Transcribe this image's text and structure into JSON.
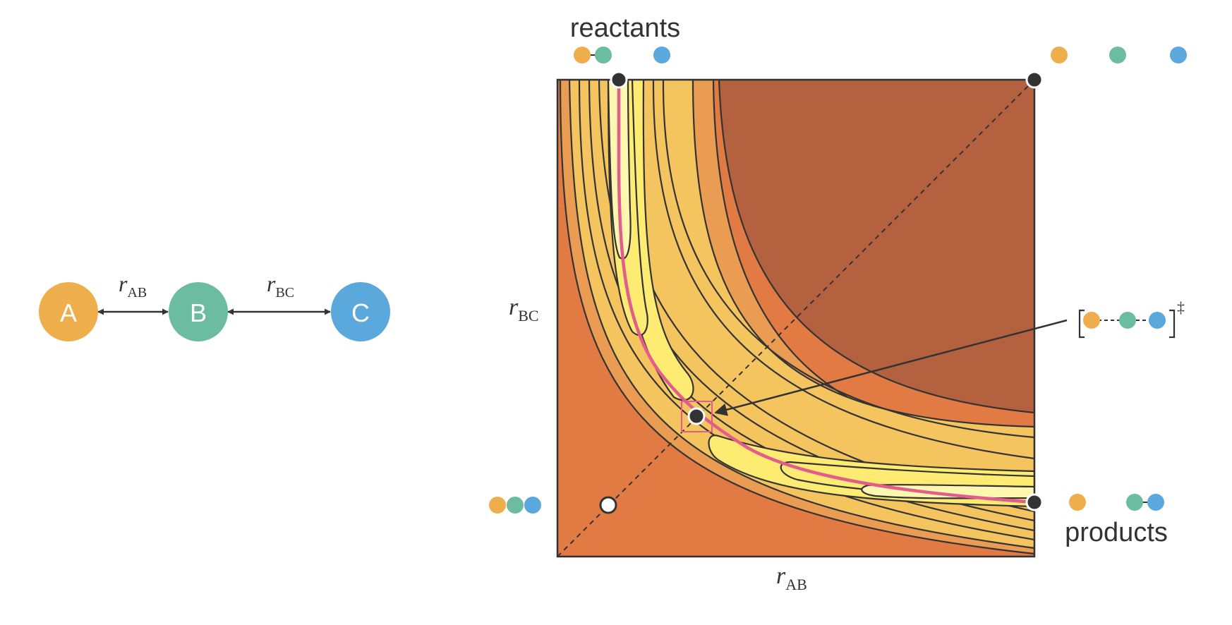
{
  "molecule": {
    "atoms": [
      {
        "label": "A",
        "color": "#EFAE4C"
      },
      {
        "label": "B",
        "color": "#6BBCA0"
      },
      {
        "label": "C",
        "color": "#5AA8DC"
      }
    ],
    "bonds": [
      {
        "var": "r",
        "sub": "AB"
      },
      {
        "var": "r",
        "sub": "BC"
      }
    ]
  },
  "surface": {
    "x_axis": {
      "var": "r",
      "sub": "AB"
    },
    "y_axis": {
      "var": "r",
      "sub": "BC"
    },
    "fill_colors": [
      "#B3613F",
      "#E27A44",
      "#EA9C52",
      "#F4C45E",
      "#FDEB72",
      "#FFF7B0"
    ],
    "path_color": "#E25C8C",
    "labels": {
      "reactants": "reactants",
      "products": "products",
      "transition_mark": "‡"
    }
  }
}
